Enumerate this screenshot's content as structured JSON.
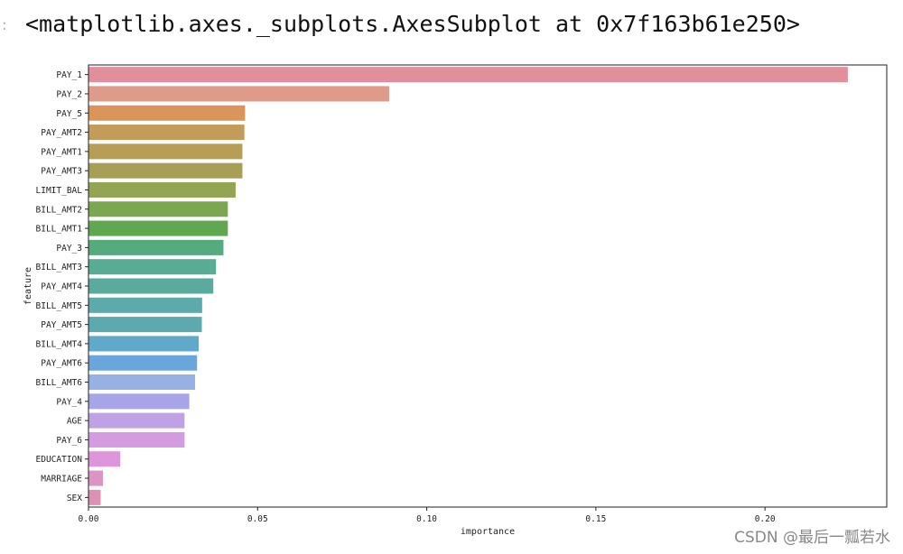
{
  "notebook": {
    "prompt_marker": ":",
    "output_repr": "<matplotlib.axes._subplots.AxesSubplot at 0x7f163b61e250>"
  },
  "watermark": "CSDN @最后一瓢若水",
  "chart_data": {
    "type": "bar",
    "orientation": "horizontal",
    "xlabel": "importance",
    "ylabel": "feature",
    "xlim": [
      0,
      0.236
    ],
    "xticks": [
      0.0,
      0.05,
      0.1,
      0.15,
      0.2
    ],
    "xtick_labels": [
      "0.00",
      "0.05",
      "0.10",
      "0.15",
      "0.20"
    ],
    "grid": false,
    "categories": [
      "PAY_1",
      "PAY_2",
      "PAY_5",
      "PAY_AMT2",
      "PAY_AMT1",
      "PAY_AMT3",
      "LIMIT_BAL",
      "BILL_AMT2",
      "BILL_AMT1",
      "PAY_3",
      "BILL_AMT3",
      "PAY_AMT4",
      "BILL_AMT5",
      "PAY_AMT5",
      "BILL_AMT4",
      "PAY_AMT6",
      "BILL_AMT6",
      "PAY_4",
      "AGE",
      "PAY_6",
      "EDUCATION",
      "MARRIAGE",
      "SEX"
    ],
    "values": [
      0.2245,
      0.0889,
      0.0463,
      0.0461,
      0.0455,
      0.0455,
      0.0435,
      0.0412,
      0.0412,
      0.0399,
      0.0377,
      0.0369,
      0.0336,
      0.0335,
      0.0326,
      0.0321,
      0.0315,
      0.0298,
      0.0284,
      0.0284,
      0.0094,
      0.0043,
      0.0036
    ],
    "colors": [
      "#e1909b",
      "#de9b8a",
      "#d9955a",
      "#c49c5a",
      "#b89e55",
      "#a69f55",
      "#93a452",
      "#7aa750",
      "#5fa84f",
      "#55ab7d",
      "#58ac94",
      "#5aab9e",
      "#5caaaa",
      "#5ca9b0",
      "#61a9c8",
      "#6aa6dc",
      "#97b1e3",
      "#a7a5e8",
      "#bfa2e4",
      "#d49be0",
      "#dd96d9",
      "#dd94c5",
      "#df91b3"
    ]
  }
}
